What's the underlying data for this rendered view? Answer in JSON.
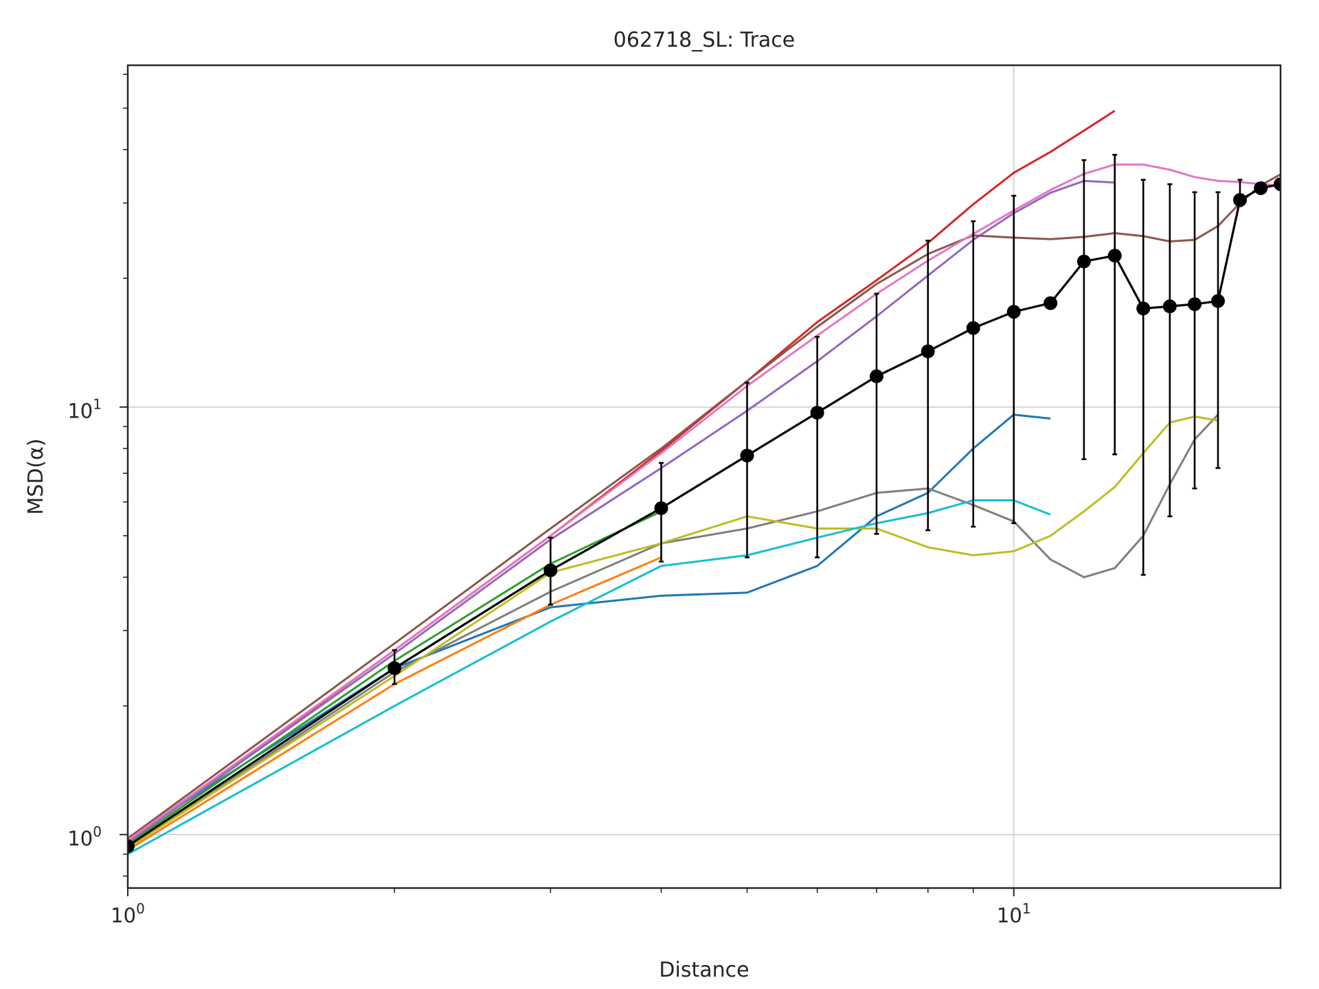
{
  "chart_data": {
    "type": "line",
    "title": "062718_SL: Trace",
    "xlabel": "Distance",
    "ylabel": "MSD(α)",
    "xscale": "log",
    "yscale": "log",
    "xlim": [
      1,
      20
    ],
    "ylim": [
      0.75,
      63
    ],
    "grid": "major",
    "x_ticks": [
      {
        "base": "10",
        "exp": "0",
        "value": 1
      },
      {
        "base": "10",
        "exp": "1",
        "value": 10
      }
    ],
    "y_ticks": [
      {
        "base": "10",
        "exp": "0",
        "value": 1
      },
      {
        "base": "10",
        "exp": "1",
        "value": 10
      }
    ],
    "series": [
      {
        "name": "series-1",
        "color": "#1f77b4",
        "x": [
          1,
          2,
          3,
          4,
          5,
          6,
          7,
          8,
          9,
          10,
          11
        ],
        "y": [
          0.98,
          2.45,
          3.4,
          3.62,
          3.68,
          4.25,
          5.55,
          6.3,
          8.0,
          9.6,
          9.4
        ]
      },
      {
        "name": "series-2",
        "color": "#ff7f0e",
        "x": [
          1,
          2,
          3,
          4
        ],
        "y": [
          0.92,
          2.25,
          3.45,
          4.45
        ]
      },
      {
        "name": "series-3",
        "color": "#2ca02c",
        "x": [
          1,
          2,
          3,
          4
        ],
        "y": [
          0.95,
          2.55,
          4.3,
          5.7
        ]
      },
      {
        "name": "series-4",
        "color": "#d62728",
        "x": [
          1,
          2,
          3,
          4,
          5,
          6,
          7,
          8,
          9,
          10,
          11,
          12,
          13
        ],
        "y": [
          0.96,
          2.7,
          5.0,
          7.9,
          11.5,
          15.8,
          19.8,
          24.2,
          29.8,
          35.3,
          39.5,
          44.3,
          49.3
        ]
      },
      {
        "name": "series-5",
        "color": "#9467bd",
        "x": [
          1,
          2,
          3,
          4,
          5,
          6,
          7,
          8,
          9,
          10,
          11,
          12,
          13
        ],
        "y": [
          0.96,
          2.65,
          4.9,
          7.2,
          9.8,
          12.8,
          16.3,
          20.3,
          24.6,
          28.4,
          31.7,
          33.8,
          33.5
        ]
      },
      {
        "name": "series-6",
        "color": "#8c564b",
        "x": [
          1,
          2,
          3,
          4,
          5,
          6,
          7,
          8,
          9,
          10,
          11,
          12,
          13,
          14,
          15,
          16,
          17,
          18,
          19,
          20
        ],
        "y": [
          0.98,
          2.8,
          5.2,
          8.0,
          11.5,
          15.4,
          19.4,
          22.8,
          25.2,
          24.9,
          24.7,
          25.0,
          25.5,
          25.1,
          24.4,
          24.6,
          26.5,
          30.0,
          33.0,
          35.0
        ]
      },
      {
        "name": "series-7",
        "color": "#e377c2",
        "x": [
          1,
          2,
          3,
          4,
          5,
          6,
          7,
          8,
          9,
          10,
          11,
          12,
          13,
          14,
          15,
          16,
          17,
          18,
          19,
          20
        ],
        "y": [
          0.97,
          2.7,
          5.0,
          7.8,
          11.2,
          14.7,
          18.4,
          22.0,
          25.4,
          28.8,
          32.2,
          35.1,
          36.9,
          36.9,
          35.9,
          34.5,
          33.8,
          33.6,
          33.2,
          33.0
        ]
      },
      {
        "name": "series-8",
        "color": "#7f7f7f",
        "x": [
          1,
          2,
          3,
          4,
          5,
          6,
          7,
          8,
          9,
          10,
          11,
          12,
          13,
          14,
          15,
          16,
          17
        ],
        "y": [
          0.93,
          2.4,
          3.7,
          4.8,
          5.2,
          5.7,
          6.3,
          6.45,
          5.9,
          5.4,
          4.4,
          4.0,
          4.2,
          5.0,
          6.6,
          8.4,
          9.6
        ]
      },
      {
        "name": "series-9",
        "color": "#bcbd22",
        "x": [
          1,
          2,
          3,
          4,
          5,
          6,
          7,
          8,
          9,
          10,
          11,
          12,
          13,
          14,
          15,
          16,
          17
        ],
        "y": [
          0.93,
          2.35,
          4.1,
          4.8,
          5.55,
          5.2,
          5.2,
          4.7,
          4.5,
          4.6,
          5.0,
          5.7,
          6.5,
          7.8,
          9.2,
          9.5,
          9.3
        ]
      },
      {
        "name": "series-10",
        "color": "#17becf",
        "x": [
          1,
          2,
          3,
          4,
          5,
          6,
          7,
          8,
          9,
          10,
          11
        ],
        "y": [
          0.9,
          2.0,
          3.15,
          4.25,
          4.5,
          4.95,
          5.35,
          5.65,
          6.05,
          6.05,
          5.6
        ]
      },
      {
        "name": "mean",
        "color": "#000000",
        "markers": true,
        "x": [
          1,
          2,
          3,
          4,
          5,
          6,
          7,
          8,
          9,
          10,
          11,
          12,
          13,
          14,
          15,
          16,
          17,
          18,
          19,
          20
        ],
        "y": [
          0.94,
          2.45,
          4.15,
          5.8,
          7.7,
          9.7,
          11.8,
          13.5,
          15.3,
          16.7,
          17.5,
          21.9,
          22.6,
          17.0,
          17.2,
          17.4,
          17.7,
          30.5,
          32.5,
          33.2
        ],
        "yerr_low": [
          0.94,
          2.25,
          3.45,
          4.35,
          4.45,
          4.45,
          5.05,
          5.15,
          5.25,
          5.35,
          null,
          7.55,
          7.75,
          4.05,
          5.55,
          6.45,
          7.2,
          29.5,
          null,
          null
        ],
        "yerr_high": [
          0.94,
          2.7,
          4.95,
          7.4,
          11.4,
          14.6,
          18.4,
          24.5,
          27.2,
          31.2,
          34.1,
          37.8,
          38.9,
          34.0,
          33.2,
          31.8,
          31.8,
          34.0,
          null,
          null
        ]
      }
    ]
  }
}
